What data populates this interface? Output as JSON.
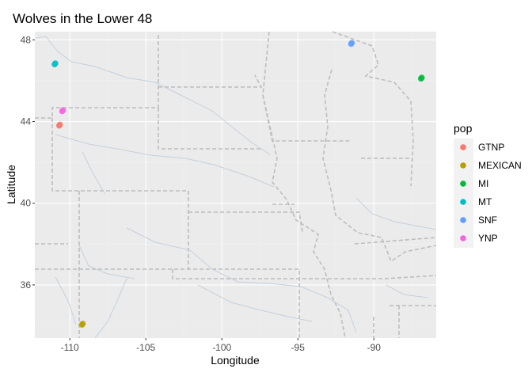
{
  "chart_data": {
    "type": "scatter",
    "title": "Wolves in the Lower 48",
    "xlabel": "Longitude",
    "ylabel": "Latitude",
    "xlim": [
      -112.3,
      -85.9
    ],
    "ylim": [
      33.4,
      48.4
    ],
    "x_ticks": [
      -110,
      -105,
      -100,
      -95,
      -90
    ],
    "x_tick_labels": [
      "-110",
      "-105",
      "-100",
      "-95",
      "-90"
    ],
    "y_ticks": [
      36,
      40,
      44,
      48
    ],
    "y_tick_labels": [
      "36",
      "40",
      "44",
      "48"
    ],
    "legend": {
      "title": "pop",
      "position": "right",
      "entries": [
        {
          "label": "GTNP",
          "color": "#F8766D"
        },
        {
          "label": "MEXICAN",
          "color": "#B79F00"
        },
        {
          "label": "MI",
          "color": "#00BA38"
        },
        {
          "label": "MT",
          "color": "#00BFC4"
        },
        {
          "label": "SNF",
          "color": "#619CFF"
        },
        {
          "label": "YNP",
          "color": "#F564E3"
        }
      ]
    },
    "series": [
      {
        "name": "GTNP",
        "x": [
          -110.7,
          -110.65
        ],
        "y": [
          43.8,
          43.85
        ]
      },
      {
        "name": "MEXICAN",
        "x": [
          -109.2,
          -109.15
        ],
        "y": [
          34.05,
          34.1
        ]
      },
      {
        "name": "MI",
        "x": [
          -86.9,
          -86.85
        ],
        "y": [
          46.1,
          46.15
        ]
      },
      {
        "name": "MT",
        "x": [
          -111.0,
          -110.95
        ],
        "y": [
          46.8,
          46.85
        ]
      },
      {
        "name": "SNF",
        "x": [
          -91.5,
          -91.45
        ],
        "y": [
          47.8,
          47.85
        ]
      },
      {
        "name": "YNP",
        "x": [
          -110.5,
          -110.45
        ],
        "y": [
          44.5,
          44.55
        ]
      }
    ]
  }
}
